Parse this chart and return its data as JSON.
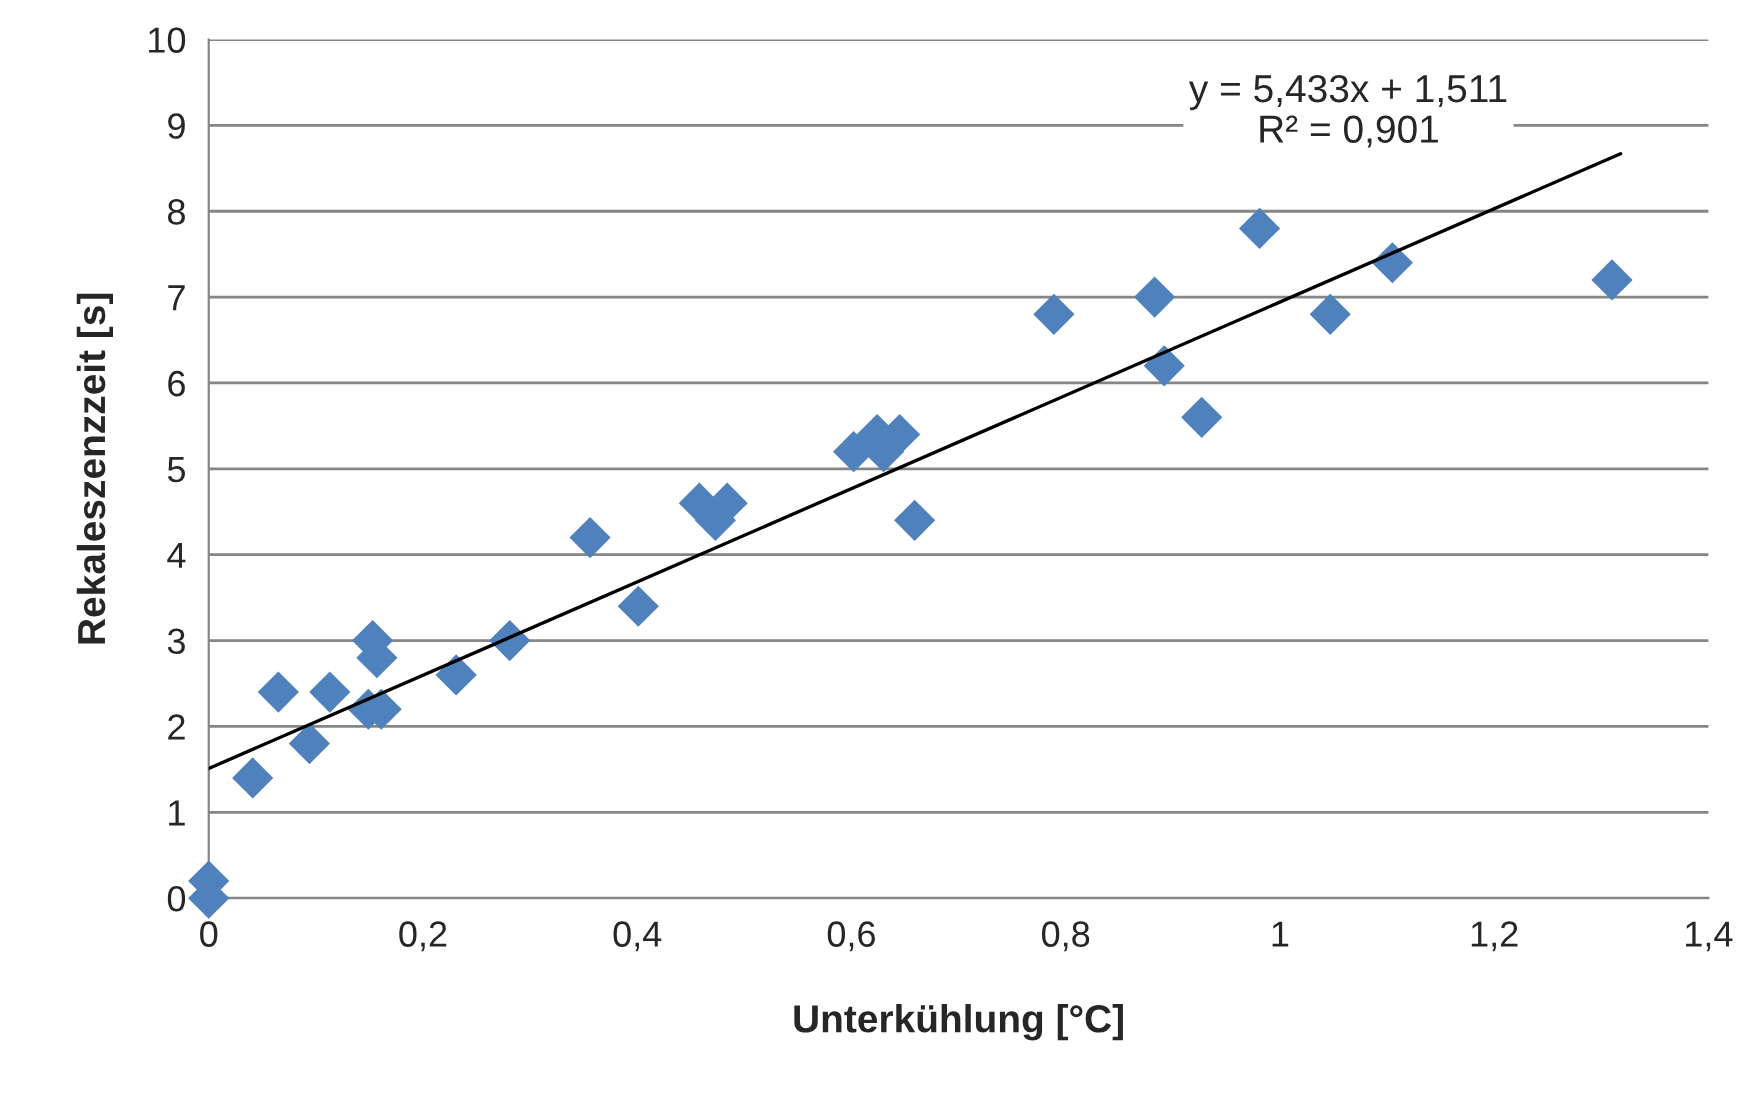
{
  "chart_data": {
    "type": "scatter",
    "xlabel": "Unterkühlung [°C]",
    "ylabel": "Rekaleszenzzeit [s]",
    "series": [
      {
        "color": "#4f81bd",
        "marker": "diamond",
        "x": [
          0,
          0,
          0.041,
          0.065,
          0.094,
          0.113,
          0.153,
          0.157,
          0.149,
          0.161,
          0.231,
          0.281,
          0.356,
          0.401,
          0.458,
          0.473,
          0.484,
          0.602,
          0.624,
          0.63,
          0.645,
          0.659,
          0.789,
          0.883,
          0.892,
          0.927,
          0.981,
          1.047,
          1.105,
          1.31
        ],
        "values": [
          0.2,
          0,
          1.4,
          2.4,
          1.8,
          2.4,
          3.0,
          2.8,
          2.2,
          2.2,
          2.6,
          3.0,
          4.2,
          3.4,
          4.6,
          4.4,
          4.6,
          5.2,
          5.4,
          5.2,
          5.4,
          4.4,
          6.8,
          7.0,
          6.2,
          5.6,
          7.8,
          6.8,
          7.4,
          7.2
        ]
      },
      {
        "type": "line",
        "color": "#000000",
        "marker": "none",
        "x": [
          0,
          1.318
        ],
        "values": [
          1.51,
          8.67
        ]
      }
    ],
    "annotations": [
      "y = 5,433x + 1,511",
      "R² = 0,901"
    ],
    "xlim": [
      0,
      1.4
    ],
    "ylim": [
      0,
      10
    ],
    "xticks": [
      0,
      {
        "value": 0.2,
        "label": "0,2"
      },
      {
        "value": 0.4,
        "label": "0,4"
      },
      {
        "value": 0.6,
        "label": "0,6"
      },
      {
        "value": 0.8,
        "label": "0,8"
      },
      1,
      {
        "value": 1.2,
        "label": "1,2"
      },
      {
        "value": 1.4,
        "label": "1,4"
      }
    ],
    "yticks": [
      0,
      1,
      2,
      3,
      4,
      5,
      6,
      7,
      8,
      9,
      10
    ],
    "grid": "y",
    "legend": false
  }
}
